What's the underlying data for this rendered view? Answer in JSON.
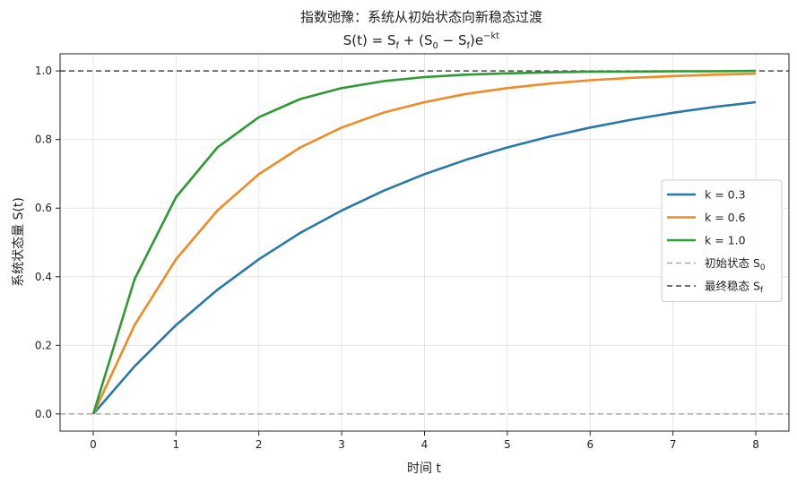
{
  "chart_data": {
    "type": "line",
    "title": "指数弛豫：系统从初始状态向新稳态过渡",
    "subtitle": {
      "base": "S(t) = S",
      "sub_f1": "f",
      "mid1": " + (S",
      "sub_0": "0",
      "mid2": " − S",
      "sub_f2": "f",
      "mid3": ")e",
      "sup": "−kt"
    },
    "xlabel": "时间 t",
    "ylabel": "系统状态量 S(t)",
    "xlim": [
      -0.4,
      8.4
    ],
    "ylim": [
      -0.05,
      1.05
    ],
    "xticks": [
      0,
      1,
      2,
      3,
      4,
      5,
      6,
      7,
      8
    ],
    "yticks": [
      0.0,
      0.2,
      0.4,
      0.6,
      0.8,
      1.0
    ],
    "ytick_labels": [
      "0.0",
      "0.2",
      "0.4",
      "0.6",
      "0.8",
      "1.0"
    ],
    "grid": true,
    "legend_position": "center-right",
    "initial_state": 0.0,
    "final_state": 1.0,
    "series": [
      {
        "name": "k = 0.3",
        "k": 0.3,
        "color": "#2878a8",
        "x": [
          0,
          0.5,
          1,
          1.5,
          2,
          2.5,
          3,
          3.5,
          4,
          4.5,
          5,
          5.5,
          6,
          6.5,
          7,
          7.5,
          8
        ],
        "y": [
          0.0,
          0.139,
          0.259,
          0.362,
          0.451,
          0.528,
          0.593,
          0.65,
          0.699,
          0.741,
          0.777,
          0.808,
          0.835,
          0.858,
          0.878,
          0.895,
          0.909
        ]
      },
      {
        "name": "k = 0.6",
        "k": 0.6,
        "color": "#f08a24",
        "x": [
          0,
          0.5,
          1,
          1.5,
          2,
          2.5,
          3,
          3.5,
          4,
          4.5,
          5,
          5.5,
          6,
          6.5,
          7,
          7.5,
          8
        ],
        "y": [
          0.0,
          0.259,
          0.451,
          0.593,
          0.699,
          0.777,
          0.835,
          0.878,
          0.909,
          0.933,
          0.95,
          0.963,
          0.973,
          0.98,
          0.985,
          0.989,
          0.992
        ]
      },
      {
        "name": "k = 1.0",
        "k": 1.0,
        "color": "#2e9a35",
        "x": [
          0,
          0.5,
          1,
          1.5,
          2,
          2.5,
          3,
          3.5,
          4,
          4.5,
          5,
          5.5,
          6,
          6.5,
          7,
          7.5,
          8
        ],
        "y": [
          0.0,
          0.393,
          0.632,
          0.777,
          0.865,
          0.918,
          0.95,
          0.97,
          0.982,
          0.989,
          0.993,
          0.996,
          0.998,
          0.998,
          0.999,
          0.999,
          1.0
        ]
      }
    ],
    "reference_lines": [
      {
        "name": "初始状态 S",
        "sub": "0",
        "y": 0.0,
        "color": "#aaaaaa",
        "style": "dashed"
      },
      {
        "name": "最终稳态 S",
        "sub": "f",
        "y": 1.0,
        "color": "#444444",
        "style": "dashed"
      }
    ]
  }
}
